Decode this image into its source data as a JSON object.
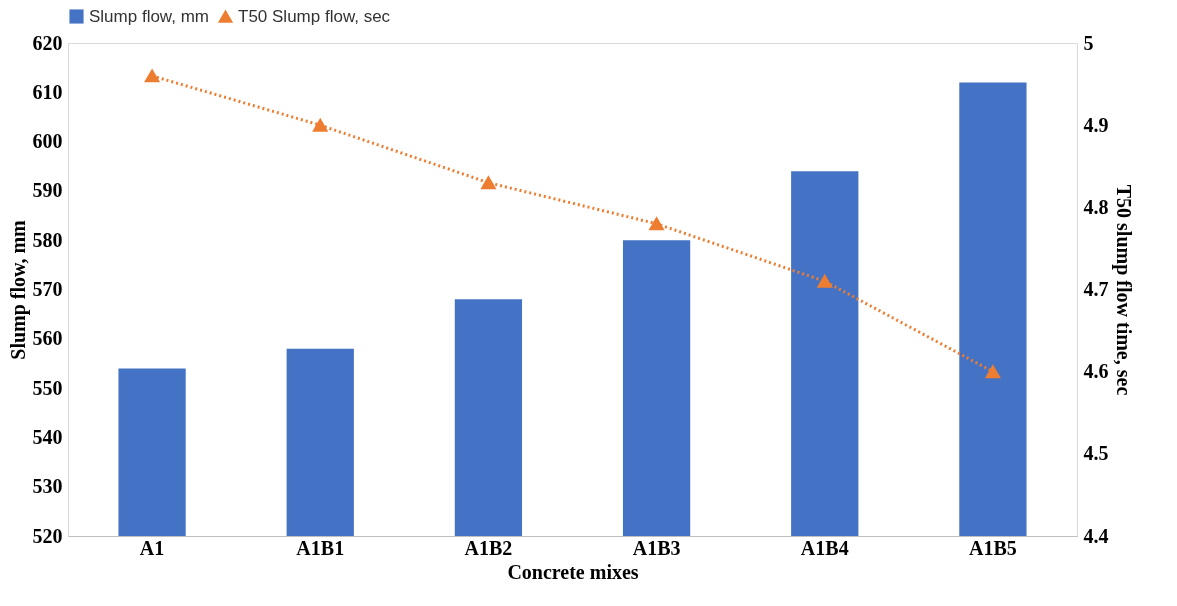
{
  "chart_data": {
    "type": "bar",
    "xlabel": "Concrete mixes",
    "ylabel": "Slump flow, mm",
    "y2label": "T50 slump flow time, sec",
    "categories": [
      "A1",
      "A1B1",
      "A1B2",
      "A1B3",
      "A1B4",
      "A1B5"
    ],
    "series": [
      {
        "name": "Slump flow, mm",
        "color": "#4472c4",
        "values": [
          554,
          558,
          568,
          580,
          594,
          612
        ]
      },
      {
        "name": "T50 Slump flow, sec",
        "type": "line",
        "axis": "y2",
        "color": "#ed7d31",
        "marker": "triangle",
        "line_style": "dotted",
        "values": [
          4.96,
          4.9,
          4.83,
          4.78,
          4.71,
          4.6
        ]
      }
    ],
    "ylim": [
      520,
      620
    ],
    "yticks": [
      520,
      530,
      540,
      550,
      560,
      570,
      580,
      590,
      600,
      610,
      620
    ],
    "y2lim": [
      4.4,
      5
    ],
    "y2ticks": [
      4.4,
      4.5,
      4.6,
      4.7,
      4.8,
      4.9,
      5
    ],
    "legend": "top"
  }
}
